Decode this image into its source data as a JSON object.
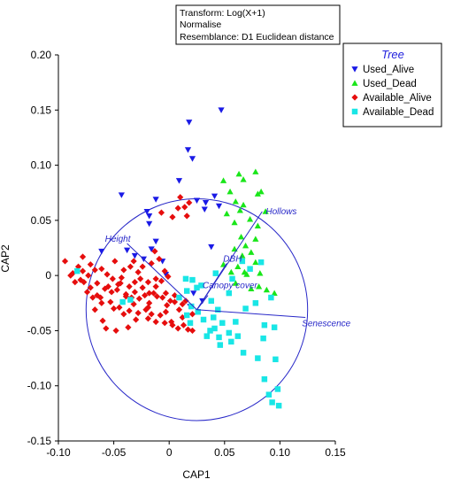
{
  "info_box": {
    "lines": [
      "Transform: Log(X+1)",
      "Normalise",
      "Resemblance: D1 Euclidean distance"
    ]
  },
  "legend": {
    "title": "Tree",
    "items": [
      {
        "label": "Used_Alive",
        "color": "#1a1ae6",
        "marker": "triangle-down"
      },
      {
        "label": "Used_Dead",
        "color": "#19e619",
        "marker": "triangle-up"
      },
      {
        "label": "Available_Alive",
        "color": "#e60d0d",
        "marker": "diamond"
      },
      {
        "label": "Available_Dead",
        "color": "#19e6e6",
        "marker": "square"
      }
    ]
  },
  "chart_data": {
    "type": "scatter",
    "xlabel": "CAP1",
    "ylabel": "CAP2",
    "xlim": [
      -0.1,
      0.15
    ],
    "ylim": [
      -0.15,
      0.2
    ],
    "x_ticks": [
      -0.1,
      -0.05,
      0,
      0.05,
      0.1,
      0.15
    ],
    "x_tick_labels": [
      "-0.10",
      "-0.05",
      "0",
      "0.05",
      "0.10",
      "0.15"
    ],
    "y_ticks": [
      -0.15,
      -0.1,
      -0.05,
      0,
      0.05,
      0.1,
      0.15,
      0.2
    ],
    "y_tick_labels": [
      "-0.15",
      "-0.10",
      "-0.05",
      "0",
      "0.05",
      "0.10",
      "0.15",
      "0.20"
    ],
    "grid": false,
    "legend_position": "top-right",
    "correlation_circle": {
      "center": [
        0.025,
        -0.031
      ],
      "radius": 0.1
    },
    "vectors": [
      {
        "label": "Hollows",
        "end": [
          0.084,
          0.058
        ]
      },
      {
        "label": "Height",
        "end": [
          -0.038,
          0.029
        ]
      },
      {
        "label": "DBH",
        "end": [
          0.052,
          0.011
        ]
      },
      {
        "label": "Canopy cover",
        "end": [
          0.035,
          -0.018
        ]
      },
      {
        "label": "Senescence",
        "end": [
          0.123,
          -0.038
        ]
      }
    ],
    "series": [
      {
        "name": "Used_Alive",
        "color": "#1a1ae6",
        "marker": "triangle-down",
        "points": [
          [
            0.018,
            0.139
          ],
          [
            0.047,
            0.15
          ],
          [
            0.021,
            0.106
          ],
          [
            0.017,
            0.114
          ],
          [
            0.009,
            0.086
          ],
          [
            -0.043,
            0.073
          ],
          [
            -0.012,
            0.069
          ],
          [
            -0.02,
            0.058
          ],
          [
            -0.018,
            0.054
          ],
          [
            0.032,
            0.06
          ],
          [
            0.041,
            0.072
          ],
          [
            0.025,
            0.068
          ],
          [
            0.033,
            0.066
          ],
          [
            0.045,
            0.063
          ],
          [
            -0.018,
            0.047
          ],
          [
            -0.038,
            0.023
          ],
          [
            -0.031,
            0.018
          ],
          [
            -0.061,
            0.022
          ],
          [
            -0.023,
            0.015
          ],
          [
            -0.012,
            0.031
          ],
          [
            -0.016,
            0.024
          ],
          [
            -0.003,
            0.001
          ],
          [
            0.022,
            -0.016
          ],
          [
            0.038,
            0.026
          ],
          [
            0.019,
            -0.028
          ],
          [
            0.03,
            -0.023
          ],
          [
            -0.006,
            0.013
          ]
        ]
      },
      {
        "name": "Used_Dead",
        "color": "#19e619",
        "marker": "triangle-up",
        "points": [
          [
            0.063,
            0.092
          ],
          [
            0.067,
            0.087
          ],
          [
            0.049,
            0.086
          ],
          [
            0.055,
            0.076
          ],
          [
            0.078,
            0.094
          ],
          [
            0.08,
            0.074
          ],
          [
            0.083,
            0.076
          ],
          [
            0.06,
            0.067
          ],
          [
            0.064,
            0.059
          ],
          [
            0.067,
            0.064
          ],
          [
            0.073,
            0.051
          ],
          [
            0.087,
            0.058
          ],
          [
            0.078,
            0.033
          ],
          [
            0.059,
            0.048
          ],
          [
            0.065,
            0.035
          ],
          [
            0.069,
            0.027
          ],
          [
            0.059,
            0.024
          ],
          [
            0.074,
            0.021
          ],
          [
            0.078,
            0.012
          ],
          [
            0.082,
            0.002
          ],
          [
            0.06,
            -0.007
          ],
          [
            0.068,
            0.003
          ],
          [
            0.088,
            -0.013
          ],
          [
            0.074,
            -0.012
          ],
          [
            0.095,
            -0.016
          ],
          [
            0.062,
            0.008
          ],
          [
            0.08,
            0.045
          ],
          [
            0.081,
            -0.01
          ],
          [
            0.056,
            0.003
          ],
          [
            0.049,
            0.01
          ],
          [
            0.07,
            0.001
          ],
          [
            0.052,
            0.056
          ],
          [
            0.066,
            0.018
          ]
        ]
      },
      {
        "name": "Available_Alive",
        "color": "#e60d0d",
        "marker": "diamond",
        "points": [
          [
            -0.094,
            0.013
          ],
          [
            -0.078,
            0.017
          ],
          [
            -0.087,
            0.002
          ],
          [
            -0.082,
            0.008
          ],
          [
            -0.077,
            -0.006
          ],
          [
            -0.085,
            -0.006
          ],
          [
            -0.073,
            0.0
          ],
          [
            -0.074,
            -0.015
          ],
          [
            -0.065,
            -0.007
          ],
          [
            -0.071,
            -0.011
          ],
          [
            -0.065,
            -0.018
          ],
          [
            -0.058,
            -0.012
          ],
          [
            -0.053,
            -0.024
          ],
          [
            -0.055,
            -0.01
          ],
          [
            -0.047,
            -0.013
          ],
          [
            -0.039,
            -0.017
          ],
          [
            -0.036,
            -0.01
          ],
          [
            -0.032,
            -0.026
          ],
          [
            -0.031,
            -0.015
          ],
          [
            -0.027,
            -0.021
          ],
          [
            -0.019,
            -0.029
          ],
          [
            -0.022,
            -0.018
          ],
          [
            -0.014,
            -0.016
          ],
          [
            -0.011,
            -0.019
          ],
          [
            -0.006,
            -0.02
          ],
          [
            -0.003,
            -0.033
          ],
          [
            -0.008,
            -0.036
          ],
          [
            -0.012,
            -0.042
          ],
          [
            -0.016,
            -0.035
          ],
          [
            -0.004,
            -0.043
          ],
          [
            0.002,
            -0.042
          ],
          [
            0.008,
            -0.048
          ],
          [
            0.012,
            -0.038
          ],
          [
            0.003,
            -0.045
          ],
          [
            -0.019,
            -0.039
          ],
          [
            -0.028,
            -0.034
          ],
          [
            -0.045,
            -0.029
          ],
          [
            -0.041,
            -0.035
          ],
          [
            -0.05,
            -0.03
          ],
          [
            -0.062,
            -0.02
          ],
          [
            -0.067,
            -0.031
          ],
          [
            -0.06,
            -0.041
          ],
          [
            -0.057,
            -0.048
          ],
          [
            -0.048,
            -0.05
          ],
          [
            -0.037,
            -0.047
          ],
          [
            -0.039,
            -0.019
          ],
          [
            -0.051,
            -0.003
          ],
          [
            -0.049,
            0.013
          ],
          [
            -0.041,
            0.005
          ],
          [
            -0.035,
            0.008
          ],
          [
            -0.028,
            0.003
          ],
          [
            -0.024,
            0.008
          ],
          [
            -0.016,
            0.011
          ],
          [
            -0.009,
            0.015
          ],
          [
            -0.004,
            0.004
          ],
          [
            -0.001,
            -0.001
          ],
          [
            -0.007,
            -0.005
          ],
          [
            -0.012,
            -0.003
          ],
          [
            -0.019,
            -0.006
          ],
          [
            -0.026,
            -0.003
          ],
          [
            -0.031,
            -0.006
          ],
          [
            -0.043,
            -0.002
          ],
          [
            -0.046,
            -0.008
          ],
          [
            -0.056,
            0.001
          ],
          [
            -0.061,
            0.006
          ],
          [
            -0.067,
            0.005
          ],
          [
            -0.071,
            0.01
          ],
          [
            -0.078,
            0.004
          ],
          [
            -0.089,
            0.0
          ],
          [
            -0.08,
            -0.004
          ],
          [
            -0.069,
            -0.02
          ],
          [
            -0.061,
            -0.025
          ],
          [
            -0.052,
            -0.015
          ],
          [
            -0.034,
            -0.02
          ],
          [
            -0.024,
            -0.011
          ],
          [
            -0.018,
            -0.016
          ],
          [
            -0.003,
            -0.016
          ],
          [
            -0.012,
            -0.01
          ],
          [
            0.001,
            -0.023
          ],
          [
            0.005,
            -0.018
          ],
          [
            0.013,
            -0.045
          ],
          [
            0.017,
            -0.049
          ],
          [
            0.021,
            -0.05
          ],
          [
            0.009,
            -0.031
          ],
          [
            0.021,
            -0.035
          ],
          [
            0.015,
            -0.023
          ],
          [
            0.014,
            0.062
          ],
          [
            0.018,
            0.066
          ],
          [
            0.008,
            0.061
          ],
          [
            0.003,
            0.053
          ],
          [
            0.016,
            0.054
          ],
          [
            -0.007,
            0.057
          ],
          [
            -0.013,
            0.022
          ],
          [
            -0.032,
            0.013
          ],
          [
            0.01,
            0.071
          ],
          [
            -0.044,
            -0.007
          ],
          [
            -0.036,
            -0.032
          ],
          [
            -0.03,
            -0.04
          ],
          [
            -0.018,
            -0.025
          ],
          [
            -0.021,
            -0.031
          ],
          [
            -0.002,
            -0.027
          ],
          [
            0.005,
            -0.024
          ],
          [
            0.012,
            -0.026
          ]
        ]
      },
      {
        "name": "Available_Dead",
        "color": "#19e6e6",
        "marker": "square",
        "points": [
          [
            0.098,
            -0.103
          ],
          [
            0.093,
            -0.115
          ],
          [
            0.099,
            -0.118
          ],
          [
            0.09,
            -0.108
          ],
          [
            0.086,
            -0.094
          ],
          [
            0.096,
            -0.076
          ],
          [
            0.095,
            -0.047
          ],
          [
            0.085,
            -0.057
          ],
          [
            0.08,
            -0.075
          ],
          [
            0.067,
            -0.07
          ],
          [
            0.062,
            -0.055
          ],
          [
            0.054,
            -0.052
          ],
          [
            0.048,
            -0.043
          ],
          [
            0.045,
            -0.056
          ],
          [
            0.041,
            -0.048
          ],
          [
            0.037,
            -0.05
          ],
          [
            0.034,
            -0.055
          ],
          [
            0.04,
            -0.038
          ],
          [
            0.044,
            -0.031
          ],
          [
            0.031,
            -0.04
          ],
          [
            0.026,
            -0.033
          ],
          [
            0.016,
            -0.036
          ],
          [
            0.02,
            -0.028
          ],
          [
            0.019,
            -0.043
          ],
          [
            0.06,
            -0.042
          ],
          [
            0.056,
            -0.06
          ],
          [
            0.038,
            -0.023
          ],
          [
            0.042,
            0.002
          ],
          [
            0.054,
            -0.016
          ],
          [
            0.057,
            -0.003
          ],
          [
            0.066,
            0.013
          ],
          [
            0.073,
            0.006
          ],
          [
            0.083,
            0.012
          ],
          [
            0.078,
            -0.025
          ],
          [
            0.092,
            -0.02
          ],
          [
            0.021,
            -0.004
          ],
          [
            0.025,
            -0.011
          ],
          [
            0.029,
            -0.009
          ],
          [
            0.015,
            -0.003
          ],
          [
            0.009,
            -0.02
          ],
          [
            0.016,
            -0.014
          ],
          [
            -0.035,
            -0.022
          ],
          [
            -0.042,
            -0.024
          ],
          [
            -0.083,
            0.004
          ],
          [
            0.069,
            -0.03
          ],
          [
            0.046,
            -0.063
          ],
          [
            0.086,
            -0.045
          ]
        ]
      }
    ]
  }
}
